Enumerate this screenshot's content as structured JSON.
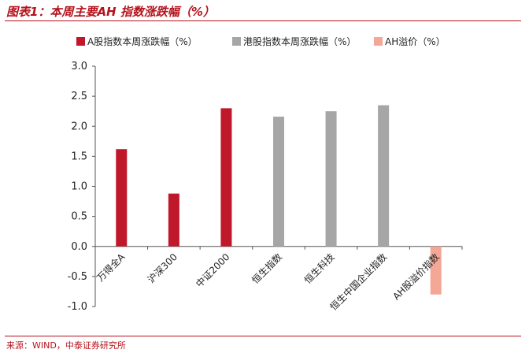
{
  "header": {
    "title": "图表1：本周主要AH 指数涨跌幅（%）"
  },
  "footer": {
    "source": "来源：WIND，中泰证券研究所"
  },
  "colors": {
    "brand": "#b5121b"
  },
  "chart_data": {
    "type": "bar",
    "title": "",
    "xlabel": "",
    "ylabel": "",
    "ylim": [
      -1.0,
      3.0
    ],
    "yticks": [
      "3.0",
      "2.5",
      "2.0",
      "1.5",
      "1.0",
      "0.5",
      "0.0",
      "-0.5",
      "-1.0"
    ],
    "grid": false,
    "legend_position": "top",
    "categories": [
      "万得全A",
      "沪深300",
      "中证2000",
      "恒生指数",
      "恒生科技",
      "恒生中国企业指数",
      "AH股溢价指数"
    ],
    "series": [
      {
        "name": "A股指数本周涨跌幅（%）",
        "color": "#c0182b",
        "values": [
          1.62,
          0.88,
          2.3,
          null,
          null,
          null,
          null
        ]
      },
      {
        "name": "港股指数本周涨跌幅（%）",
        "color": "#a6a6a6",
        "values": [
          null,
          null,
          null,
          2.16,
          2.25,
          2.35,
          null
        ]
      },
      {
        "name": "AH溢价（%）",
        "color": "#f4a796",
        "values": [
          null,
          null,
          null,
          null,
          null,
          null,
          -0.8
        ]
      }
    ]
  }
}
